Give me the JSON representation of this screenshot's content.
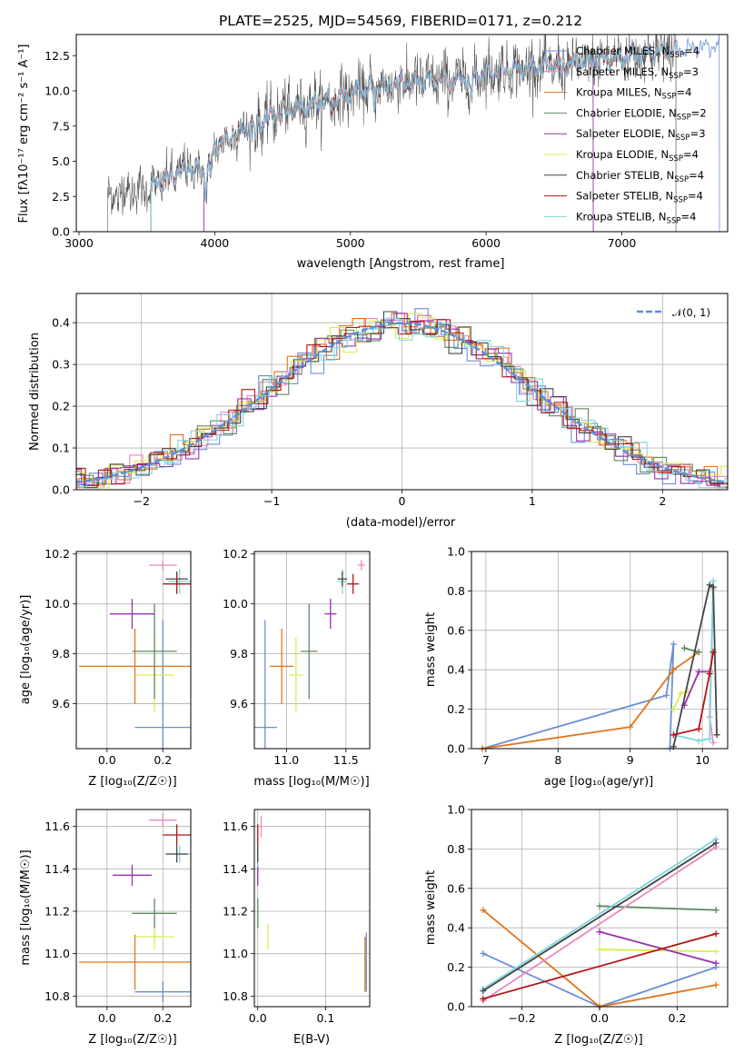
{
  "colors": {
    "chabrier_miles": "#6a8fd6",
    "salpeter_miles": "#e889c1",
    "kroupa_miles": "#e0751e",
    "chabrier_elodie": "#5e8a5e",
    "salpeter_elodie": "#9a2fb0",
    "kroupa_elodie": "#d9ec52",
    "chabrier_stelib": "#444444",
    "salpeter_stelib": "#b51313",
    "kroupa_stelib": "#7dd6de",
    "gaussian": "#5b8fd9"
  },
  "chart_data": [
    {
      "id": "spectrum",
      "type": "line",
      "title": "PLATE=2525, MJD=54569, FIBERID=0171, z=0.212",
      "xlabel": "wavelength [Angstrom, rest frame]",
      "ylabel": "Flux [fλ10⁻¹⁷ erg cm⁻² s⁻¹ A⁻¹]",
      "xlim": [
        2980,
        7780
      ],
      "ylim": [
        0,
        14
      ],
      "xticks": [
        3000,
        4000,
        5000,
        6000,
        7000
      ],
      "yticks": [
        0.0,
        2.5,
        5.0,
        7.5,
        10.0,
        12.5
      ],
      "ytick_labels": [
        "0.0",
        "2.5",
        "5.0",
        "7.5",
        "10.0",
        "12.5"
      ],
      "legend_position": "right",
      "legend": [
        {
          "key": "chabrier_miles",
          "label": "Chabrier MILES, N",
          "sub": "SSP",
          "tail": "=4"
        },
        {
          "key": "salpeter_miles",
          "label": "Salpeter MILES, N",
          "sub": "SSP",
          "tail": "=3"
        },
        {
          "key": "kroupa_miles",
          "label": "Kroupa MILES, N",
          "sub": "SSP",
          "tail": "=4"
        },
        {
          "key": "chabrier_elodie",
          "label": "Chabrier ELODIE, N",
          "sub": "SSP",
          "tail": "=2"
        },
        {
          "key": "salpeter_elodie",
          "label": "Salpeter ELODIE, N",
          "sub": "SSP",
          "tail": "=3"
        },
        {
          "key": "kroupa_elodie",
          "label": "Kroupa ELODIE, N",
          "sub": "SSP",
          "tail": "=4"
        },
        {
          "key": "chabrier_stelib",
          "label": "Chabrier STELIB, N",
          "sub": "SSP",
          "tail": "=4"
        },
        {
          "key": "salpeter_stelib",
          "label": "Salpeter STELIB, N",
          "sub": "SSP",
          "tail": "=4"
        },
        {
          "key": "kroupa_stelib",
          "label": "Kroupa STELIB, N",
          "sub": "SSP",
          "tail": "=4"
        }
      ],
      "continuum": [
        [
          3200,
          2.2
        ],
        [
          3300,
          2.8
        ],
        [
          3500,
          3.0
        ],
        [
          3600,
          3.5
        ],
        [
          3700,
          4.0
        ],
        [
          3800,
          4.6
        ],
        [
          3900,
          4.3
        ],
        [
          3950,
          5.0
        ],
        [
          4000,
          6.0
        ],
        [
          4100,
          6.8
        ],
        [
          4200,
          7.2
        ],
        [
          4300,
          7.6
        ],
        [
          4400,
          8.1
        ],
        [
          4500,
          8.6
        ],
        [
          4700,
          9.0
        ],
        [
          5000,
          9.8
        ],
        [
          5200,
          10.4
        ],
        [
          5500,
          10.7
        ],
        [
          5800,
          10.8
        ],
        [
          6000,
          11.3
        ],
        [
          6300,
          11.6
        ],
        [
          6600,
          11.9
        ],
        [
          7000,
          12.4
        ],
        [
          7300,
          12.8
        ],
        [
          7700,
          13.2
        ]
      ],
      "model_starts": {
        "chabrier_stelib": 3210,
        "salpeter_miles": 3530,
        "salpeter_stelib": 3530,
        "kroupa_miles": 3530,
        "chabrier_miles": 3530,
        "kroupa_elodie": 3920,
        "chabrier_elodie": 3920,
        "salpeter_elodie": 3920,
        "kroupa_stelib": 3530
      },
      "model_ends": {
        "kroupa_elodie": 6790,
        "chabrier_elodie": 6790,
        "salpeter_elodie": 6790,
        "kroupa_miles": 7400,
        "salpeter_stelib": 7400,
        "chabrier_stelib": 7400,
        "kroupa_stelib": 7400,
        "salpeter_miles": 7400,
        "chabrier_miles": 7720
      }
    },
    {
      "id": "residuals",
      "type": "histogram",
      "xlabel": "(data-model)/error",
      "ylabel": "Normed distribution",
      "xlim": [
        -2.5,
        2.5
      ],
      "ylim": [
        0,
        0.47
      ],
      "xticks": [
        -2,
        -1,
        0,
        1,
        2
      ],
      "xtick_labels": [
        "−2",
        "−1",
        "0",
        "1",
        "2"
      ],
      "yticks": [
        0.0,
        0.1,
        0.2,
        0.3,
        0.4
      ],
      "ytick_labels": [
        "0.0",
        "0.1",
        "0.2",
        "0.3",
        "0.4"
      ],
      "bin_width": 0.1,
      "legend": [
        {
          "key": "gaussian",
          "label": "𝒩(0, 1)"
        }
      ],
      "legend_position": "top-right"
    },
    {
      "id": "age_vs_Z",
      "type": "errorbar",
      "xlabel": "Z [log₁₀(Z/Z☉)]",
      "ylabel": "age  [log₁₀(age/yr)]",
      "xlim": [
        -0.11,
        0.3
      ],
      "ylim": [
        9.42,
        10.21
      ],
      "xticks": [
        0.0,
        0.2
      ],
      "xtick_labels": [
        "0.0",
        "0.2"
      ],
      "yticks": [
        9.6,
        9.8,
        10.0,
        10.2
      ],
      "ytick_labels": [
        "9.6",
        "9.8",
        "10.0",
        "10.2"
      ],
      "points": [
        {
          "key": "chabrier_miles",
          "x": 0.2,
          "xerr": 0.1,
          "y": 9.505,
          "yerr": 0.43
        },
        {
          "key": "kroupa_miles",
          "x": 0.1,
          "xerr": 0.2,
          "y": 9.75,
          "yerr": 0.15
        },
        {
          "key": "kroupa_elodie",
          "x": 0.17,
          "xerr": 0.07,
          "y": 9.715,
          "yerr": 0.15
        },
        {
          "key": "chabrier_elodie",
          "x": 0.17,
          "xerr": 0.08,
          "y": 9.81,
          "yerr": 0.19
        },
        {
          "key": "salpeter_elodie",
          "x": 0.09,
          "xerr": 0.08,
          "y": 9.96,
          "yerr": 0.06
        },
        {
          "key": "salpeter_miles",
          "x": 0.2,
          "xerr": 0.05,
          "y": 10.155,
          "yerr": 0.02
        },
        {
          "key": "kroupa_stelib",
          "x": 0.26,
          "xerr": 0.04,
          "y": 10.09,
          "yerr": 0.05
        },
        {
          "key": "chabrier_stelib",
          "x": 0.25,
          "xerr": 0.04,
          "y": 10.1,
          "yerr": 0.03
        },
        {
          "key": "salpeter_stelib",
          "x": 0.25,
          "xerr": 0.05,
          "y": 10.08,
          "yerr": 0.04
        }
      ]
    },
    {
      "id": "age_vs_mass",
      "type": "errorbar",
      "xlabel": "mass [log₁₀(M/M☉)]",
      "ylabel": "",
      "xlim": [
        10.73,
        11.7
      ],
      "ylim": [
        9.42,
        10.21
      ],
      "xticks": [
        11.0,
        11.5
      ],
      "xtick_labels": [
        "11.0",
        "11.5"
      ],
      "yticks": [
        9.6,
        9.8,
        10.0,
        10.2
      ],
      "ytick_labels": [
        "9.6",
        "9.8",
        "10.0",
        "10.2"
      ],
      "points": [
        {
          "key": "chabrier_miles",
          "x": 10.82,
          "xerr": 0.1,
          "y": 9.505,
          "yerr": 0.43
        },
        {
          "key": "kroupa_miles",
          "x": 10.96,
          "xerr": 0.1,
          "y": 9.75,
          "yerr": 0.15
        },
        {
          "key": "kroupa_elodie",
          "x": 11.08,
          "xerr": 0.06,
          "y": 9.715,
          "yerr": 0.15
        },
        {
          "key": "chabrier_elodie",
          "x": 11.19,
          "xerr": 0.07,
          "y": 9.81,
          "yerr": 0.19
        },
        {
          "key": "salpeter_elodie",
          "x": 11.37,
          "xerr": 0.05,
          "y": 9.96,
          "yerr": 0.06
        },
        {
          "key": "salpeter_miles",
          "x": 11.63,
          "xerr": 0.03,
          "y": 10.155,
          "yerr": 0.02
        },
        {
          "key": "kroupa_stelib",
          "x": 11.47,
          "xerr": 0.04,
          "y": 10.09,
          "yerr": 0.05
        },
        {
          "key": "chabrier_stelib",
          "x": 11.47,
          "xerr": 0.04,
          "y": 10.1,
          "yerr": 0.03
        },
        {
          "key": "salpeter_stelib",
          "x": 11.56,
          "xerr": 0.05,
          "y": 10.08,
          "yerr": 0.04
        }
      ]
    },
    {
      "id": "weight_vs_age",
      "type": "line",
      "xlabel": "age  [log₁₀(age/yr)]",
      "ylabel": "mass weight",
      "xlim": [
        6.8,
        10.35
      ],
      "ylim": [
        0,
        1
      ],
      "xticks": [
        7,
        8,
        9,
        10
      ],
      "xtick_labels": [
        "7",
        "8",
        "9",
        "10"
      ],
      "yticks": [
        0.0,
        0.2,
        0.4,
        0.6,
        0.8,
        1.0
      ],
      "ytick_labels": [
        "0.0",
        "0.2",
        "0.4",
        "0.6",
        "0.8",
        "1.0"
      ],
      "series": [
        {
          "key": "chabrier_miles",
          "x": [
            6.95,
            9.5,
            9.6,
            9.55
          ],
          "y": [
            0.0,
            0.27,
            0.53,
            0.0
          ]
        },
        {
          "key": "kroupa_miles",
          "x": [
            6.95,
            9.0,
            9.6,
            9.95
          ],
          "y": [
            0.0,
            0.11,
            0.4,
            0.49
          ]
        },
        {
          "key": "kroupa_elodie",
          "x": [
            9.6,
            9.7,
            9.8
          ],
          "y": [
            0.2,
            0.28,
            0.29
          ]
        },
        {
          "key": "chabrier_elodie",
          "x": [
            9.75,
            9.95
          ],
          "y": [
            0.51,
            0.49
          ]
        },
        {
          "key": "salpeter_elodie",
          "x": [
            9.75,
            9.95,
            10.1
          ],
          "y": [
            0.22,
            0.39,
            0.39
          ]
        },
        {
          "key": "salpeter_miles",
          "x": [
            10.15,
            10.1,
            10.15
          ],
          "y": [
            0.03,
            0.16,
            0.81
          ]
        },
        {
          "key": "kroupa_stelib",
          "x": [
            9.6,
            9.95,
            10.1,
            10.15
          ],
          "y": [
            0.07,
            0.04,
            0.05,
            0.85
          ]
        },
        {
          "key": "chabrier_stelib",
          "x": [
            9.6,
            10.1,
            10.15,
            10.2
          ],
          "y": [
            0.01,
            0.83,
            0.82,
            0.07
          ]
        },
        {
          "key": "salpeter_stelib",
          "x": [
            9.6,
            9.95,
            10.1,
            10.15
          ],
          "y": [
            0.07,
            0.1,
            0.38,
            0.49
          ]
        }
      ]
    },
    {
      "id": "mass_vs_Z",
      "type": "errorbar",
      "xlabel": "Z [log₁₀(Z/Z☉)]",
      "ylabel": "mass [log₁₀(M/M☉)]",
      "xlim": [
        -0.11,
        0.3
      ],
      "ylim": [
        10.75,
        11.68
      ],
      "xticks": [
        0.0,
        0.2
      ],
      "xtick_labels": [
        "0.0",
        "0.2"
      ],
      "yticks": [
        10.8,
        11.0,
        11.2,
        11.4,
        11.6
      ],
      "ytick_labels": [
        "10.8",
        "11.0",
        "11.2",
        "11.4",
        "11.6"
      ],
      "points": [
        {
          "key": "chabrier_miles",
          "x": 0.2,
          "xerr": 0.1,
          "y": 10.82,
          "yerr": 0.05
        },
        {
          "key": "kroupa_miles",
          "x": 0.1,
          "xerr": 0.2,
          "y": 10.96,
          "yerr": 0.13
        },
        {
          "key": "kroupa_elodie",
          "x": 0.17,
          "xerr": 0.07,
          "y": 11.08,
          "yerr": 0.06
        },
        {
          "key": "chabrier_elodie",
          "x": 0.17,
          "xerr": 0.08,
          "y": 11.19,
          "yerr": 0.07
        },
        {
          "key": "salpeter_elodie",
          "x": 0.09,
          "xerr": 0.07,
          "y": 11.37,
          "yerr": 0.05
        },
        {
          "key": "salpeter_miles",
          "x": 0.2,
          "xerr": 0.05,
          "y": 11.63,
          "yerr": 0.03
        },
        {
          "key": "kroupa_stelib",
          "x": 0.26,
          "xerr": 0.04,
          "y": 11.47,
          "yerr": 0.04
        },
        {
          "key": "chabrier_stelib",
          "x": 0.25,
          "xerr": 0.04,
          "y": 11.47,
          "yerr": 0.04
        },
        {
          "key": "salpeter_stelib",
          "x": 0.25,
          "xerr": 0.05,
          "y": 11.56,
          "yerr": 0.05
        }
      ]
    },
    {
      "id": "mass_vs_ebv",
      "type": "errorbar",
      "xlabel": "E(B-V)",
      "ylabel": "",
      "xlim": [
        -0.005,
        0.165
      ],
      "ylim": [
        10.75,
        11.68
      ],
      "xticks": [
        0.0,
        0.1
      ],
      "xtick_labels": [
        "0.0",
        "0.1"
      ],
      "yticks": [
        10.8,
        11.0,
        11.2,
        11.4,
        11.6
      ],
      "ytick_labels": [
        "10.8",
        "11.0",
        "11.2",
        "11.4",
        "11.6"
      ],
      "points": [
        {
          "key": "chabrier_miles",
          "x": 0.16,
          "xerr": 0,
          "y": 10.96,
          "yerr": 0.14
        },
        {
          "key": "kroupa_miles",
          "x": 0.158,
          "xerr": 0,
          "y": 10.95,
          "yerr": 0.13
        },
        {
          "key": "kroupa_elodie",
          "x": 0.015,
          "xerr": 0,
          "y": 11.08,
          "yerr": 0.06
        },
        {
          "key": "chabrier_elodie",
          "x": 0.0,
          "xerr": 0,
          "y": 11.19,
          "yerr": 0.07
        },
        {
          "key": "salpeter_elodie",
          "x": 0.0,
          "xerr": 0,
          "y": 11.37,
          "yerr": 0.05
        },
        {
          "key": "salpeter_miles",
          "x": 0.005,
          "xerr": 0,
          "y": 11.6,
          "yerr": 0.05
        },
        {
          "key": "kroupa_stelib",
          "x": 0.0,
          "xerr": 0,
          "y": 11.46,
          "yerr": 0.05
        },
        {
          "key": "chabrier_stelib",
          "x": 0.0,
          "xerr": 0,
          "y": 11.47,
          "yerr": 0.04
        },
        {
          "key": "salpeter_stelib",
          "x": 0.0,
          "xerr": 0,
          "y": 11.56,
          "yerr": 0.05
        }
      ]
    },
    {
      "id": "weight_vs_Z",
      "type": "line",
      "xlabel": "Z [log₁₀(Z/Z☉)]",
      "ylabel": "mass weight",
      "xlim": [
        -0.33,
        0.33
      ],
      "ylim": [
        0,
        1
      ],
      "xticks": [
        -0.2,
        0.0,
        0.2
      ],
      "xtick_labels": [
        "−0.2",
        "0.0",
        "0.2"
      ],
      "yticks": [
        0.0,
        0.2,
        0.4,
        0.6,
        0.8,
        1.0
      ],
      "ytick_labels": [
        "0.0",
        "0.2",
        "0.4",
        "0.6",
        "0.8",
        "1.0"
      ],
      "series": [
        {
          "key": "chabrier_miles",
          "x": [
            -0.3,
            0.0,
            0.3
          ],
          "y": [
            0.27,
            0.0,
            0.2
          ]
        },
        {
          "key": "kroupa_miles",
          "x": [
            -0.3,
            0.0,
            0.3
          ],
          "y": [
            0.49,
            0.0,
            0.11
          ]
        },
        {
          "key": "kroupa_elodie",
          "x": [
            0.0,
            0.3
          ],
          "y": [
            0.29,
            0.28
          ]
        },
        {
          "key": "chabrier_elodie",
          "x": [
            0.0,
            0.3
          ],
          "y": [
            0.51,
            0.49
          ]
        },
        {
          "key": "salpeter_elodie",
          "x": [
            0.0,
            0.3
          ],
          "y": [
            0.38,
            0.22
          ]
        },
        {
          "key": "salpeter_miles",
          "x": [
            -0.3,
            0.3
          ],
          "y": [
            0.03,
            0.81
          ]
        },
        {
          "key": "kroupa_stelib",
          "x": [
            -0.3,
            0.3
          ],
          "y": [
            0.09,
            0.85
          ]
        },
        {
          "key": "chabrier_stelib",
          "x": [
            -0.3,
            0.3
          ],
          "y": [
            0.08,
            0.83
          ]
        },
        {
          "key": "salpeter_stelib",
          "x": [
            -0.3,
            0.3
          ],
          "y": [
            0.04,
            0.37
          ]
        }
      ]
    }
  ]
}
